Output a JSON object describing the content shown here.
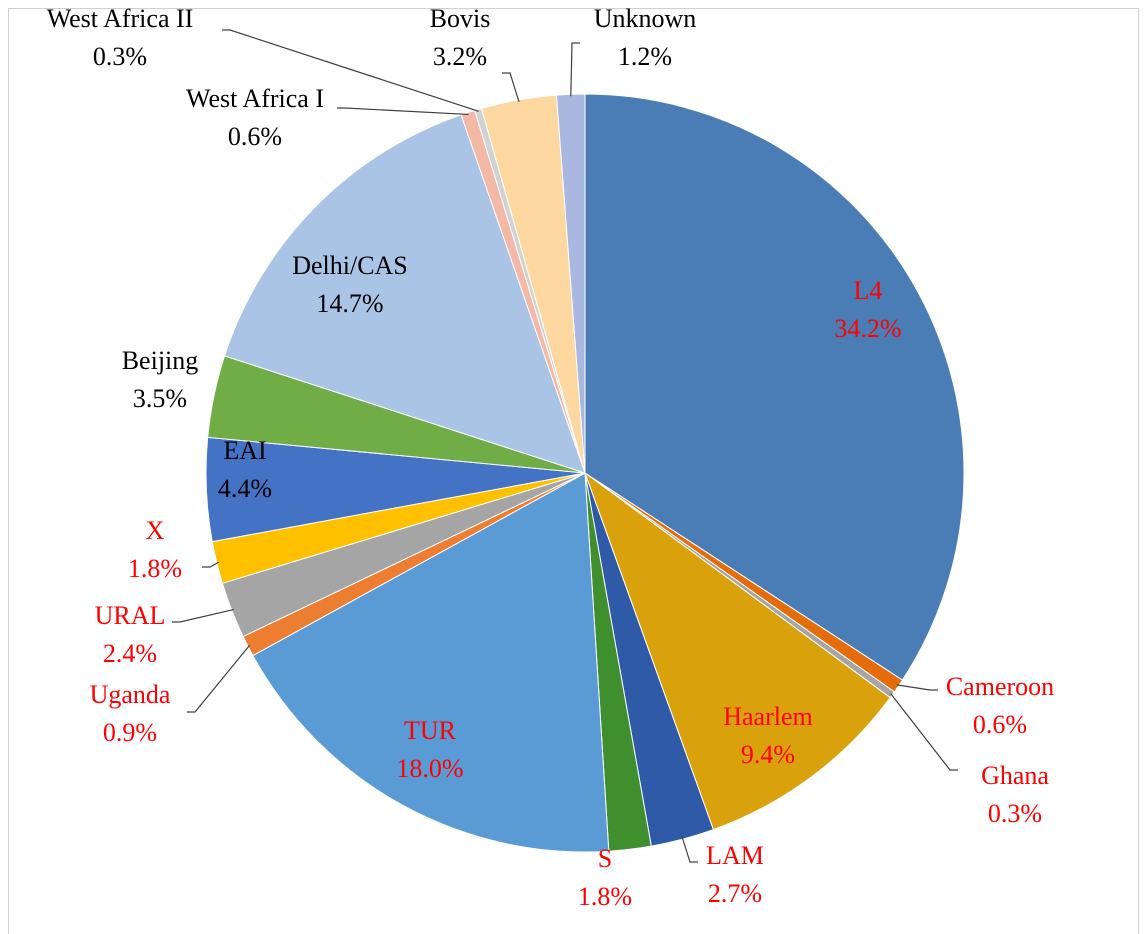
{
  "chart_data": {
    "type": "pie",
    "categories": [
      "L4",
      "Cameroon",
      "Ghana",
      "Haarlem",
      "LAM",
      "S",
      "TUR",
      "Uganda",
      "URAL",
      "X",
      "EAI",
      "Beijing",
      "Delhi/CAS",
      "West Africa I",
      "West Africa II",
      "Bovis",
      "Unknown"
    ],
    "values": [
      34.2,
      0.6,
      0.3,
      9.4,
      2.7,
      1.8,
      18.0,
      0.9,
      2.4,
      1.8,
      4.4,
      3.5,
      14.7,
      0.6,
      0.3,
      3.2,
      1.2
    ],
    "value_labels": [
      "34.2%",
      "0.6%",
      "0.3%",
      "9.4%",
      "2.7%",
      "1.8%",
      "18.0%",
      "0.9%",
      "2.4%",
      "1.8%",
      "4.4%",
      "3.5%",
      "14.7%",
      "0.6%",
      "0.3%",
      "3.2%",
      "1.2%"
    ],
    "colors": [
      "#4a7db6",
      "#e46c0a",
      "#a5a5a5",
      "#d9a10c",
      "#2f5aa8",
      "#3f8f2f",
      "#5b9bd5",
      "#ed7d31",
      "#a5a5a5",
      "#ffc000",
      "#4472c4",
      "#70ad47",
      "#aac4e6",
      "#f4b8a6",
      "#d2d2d2",
      "#fdd7a0",
      "#aab8e0"
    ],
    "label_colors": [
      "#ff0000",
      "#ff0000",
      "#ff0000",
      "#ff0000",
      "#ff0000",
      "#ff0000",
      "#ff0000",
      "#ff0000",
      "#ff0000",
      "#ff0000",
      "#000000",
      "#000000",
      "#000000",
      "#000000",
      "#000000",
      "#000000",
      "#000000"
    ]
  }
}
